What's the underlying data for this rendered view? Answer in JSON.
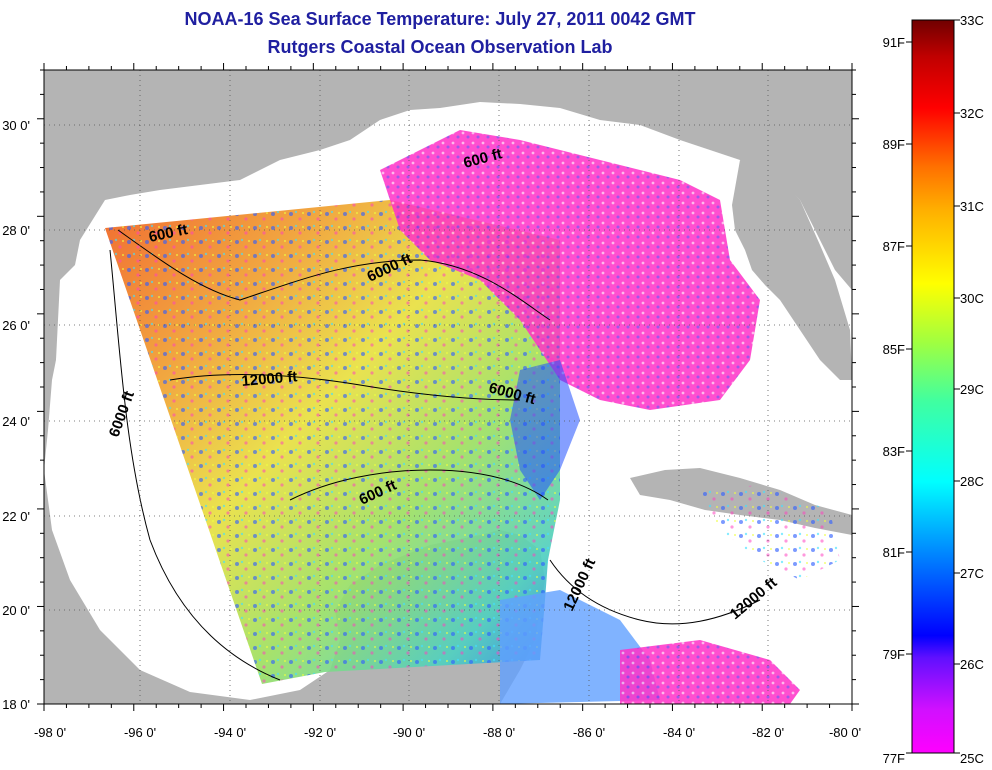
{
  "title": "NOAA-16 Sea Surface Temperature:  July 27, 2011 0042 GMT",
  "subtitle": "Rutgers Coastal Ocean Observation Lab",
  "map": {
    "lon_ticks": [
      "-98 0'",
      "-96 0'",
      "-94 0'",
      "-92 0'",
      "-90 0'",
      "-88 0'",
      "-86 0'",
      "-84 0'",
      "-82 0'",
      "-80 0'"
    ],
    "lat_ticks": [
      "18 0'",
      "20 0'",
      "22 0'",
      "24 0'",
      "26 0'",
      "28 0'",
      "30 0'"
    ],
    "lon_range": [
      -98,
      -80
    ],
    "lat_range": [
      18,
      31
    ],
    "grid": true,
    "land_color": "#b4b4b4",
    "contour_labels": [
      "600 ft",
      "600 ft",
      "6000 ft",
      "12000 ft",
      "6000 ft",
      "6000 ft",
      "600 ft",
      "12000 ft",
      "12000 ft"
    ]
  },
  "colorbar": {
    "celsius_labels": [
      "33C",
      "32C",
      "31C",
      "30C",
      "29C",
      "28C",
      "27C",
      "26C",
      "25C"
    ],
    "fahrenheit_labels": [
      "91F",
      "89F",
      "87F",
      "85F",
      "83F",
      "81F",
      "79F",
      "77F"
    ],
    "range_c": [
      25,
      33
    ],
    "colors": [
      "#ff00ff",
      "#b000ff",
      "#0000ff",
      "#00b0ff",
      "#00ffff",
      "#00ff80",
      "#80ff00",
      "#ffff00",
      "#ffc000",
      "#ff8000",
      "#ff0000",
      "#a00000",
      "#800000"
    ]
  }
}
